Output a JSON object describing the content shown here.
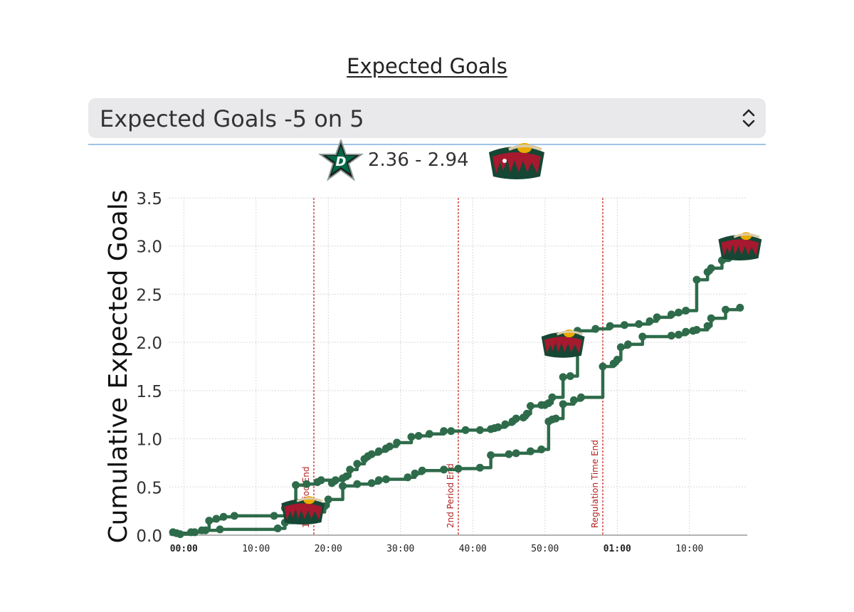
{
  "page": {
    "title": "Expected Goals"
  },
  "selector": {
    "selected": "Expected Goals -5 on 5"
  },
  "score": {
    "text": "2.36 - 2.94",
    "away_team_icon": "dallas-stars-logo",
    "home_team_icon": "minnesota-wild-logo"
  },
  "colors": {
    "series": "#2e6b4a",
    "marker_line": "#cc2b2b",
    "grid": "#d9d9d9",
    "wild_green": "#154734",
    "wild_red": "#a6192e",
    "wild_wheat": "#ddcba4",
    "stars_green": "#006847"
  },
  "chart_data": {
    "type": "line",
    "title": "",
    "xlabel": "",
    "ylabel": "Cumulative Expected Goals",
    "ylim": [
      0,
      3.5
    ],
    "yticks": [
      "0.0",
      "0.5",
      "1.0",
      "1.5",
      "2.0",
      "2.5",
      "3.0",
      "3.5"
    ],
    "xlim_minutes": [
      -2,
      78
    ],
    "xticks": [
      {
        "label": "00:00",
        "minute": 0,
        "bold": true
      },
      {
        "label": "10:00",
        "minute": 10,
        "bold": false
      },
      {
        "label": "20:00",
        "minute": 20,
        "bold": false
      },
      {
        "label": "30:00",
        "minute": 30,
        "bold": false
      },
      {
        "label": "40:00",
        "minute": 40,
        "bold": false
      },
      {
        "label": "50:00",
        "minute": 50,
        "bold": false
      },
      {
        "label": "01:00",
        "minute": 60,
        "bold": true
      },
      {
        "label": "10:00",
        "minute": 70,
        "bold": false
      }
    ],
    "period_markers": [
      {
        "label": "1st Period End",
        "minute": 18
      },
      {
        "label": "2nd Period End",
        "minute": 38
      },
      {
        "label": "Regulation Time End",
        "minute": 58
      }
    ],
    "grid": true,
    "legend": "none",
    "series": [
      {
        "team_icon": "minnesota-wild-logo",
        "x": [
          -1.5,
          -0.5,
          1,
          2.5,
          3.5,
          4.5,
          5.5,
          7,
          12.5,
          14,
          15.5,
          17,
          18.5,
          19,
          20.5,
          21,
          22,
          22.5,
          23,
          24,
          25,
          25.5,
          26,
          27,
          28,
          28.5,
          29.5,
          31.5,
          32.5,
          34,
          36,
          37,
          39,
          41,
          42.5,
          43,
          43.5,
          44.5,
          45.5,
          46,
          47,
          47.5,
          48,
          49.5,
          50,
          50.5,
          51,
          52.5,
          53.5,
          54.5,
          57,
          59,
          61,
          63,
          64.5,
          65.5,
          67.5,
          68.5,
          69.5,
          71,
          72.5,
          73,
          74.5,
          75.5,
          76.5
        ],
        "y": [
          0.03,
          0.01,
          0.03,
          0.05,
          0.15,
          0.17,
          0.19,
          0.2,
          0.2,
          0.28,
          0.52,
          0.53,
          0.55,
          0.57,
          0.54,
          0.57,
          0.59,
          0.61,
          0.68,
          0.74,
          0.79,
          0.82,
          0.84,
          0.87,
          0.9,
          0.92,
          0.96,
          1.02,
          1.03,
          1.05,
          1.08,
          1.08,
          1.09,
          1.09,
          1.1,
          1.11,
          1.12,
          1.15,
          1.18,
          1.21,
          1.22,
          1.26,
          1.34,
          1.35,
          1.35,
          1.37,
          1.43,
          1.64,
          1.65,
          2.12,
          2.14,
          2.17,
          2.18,
          2.19,
          2.22,
          2.26,
          2.29,
          2.31,
          2.33,
          2.65,
          2.73,
          2.77,
          2.85,
          2.88,
          2.94
        ]
      },
      {
        "team_icon": "dallas-stars-logo",
        "x": [
          -1,
          1.5,
          3,
          5,
          13,
          14,
          17,
          18,
          19.5,
          20,
          22,
          24,
          26,
          27,
          28,
          31,
          32,
          33,
          36,
          38,
          41,
          42.5,
          45,
          46,
          48,
          49.5,
          50.5,
          51,
          51.5,
          52.5,
          54,
          55,
          58,
          59.5,
          60,
          60.5,
          61.5,
          63.5,
          67.5,
          68.5,
          69.5,
          70.5,
          71,
          72.5,
          73,
          75,
          77
        ],
        "y": [
          0.02,
          0.03,
          0.05,
          0.06,
          0.07,
          0.13,
          0.16,
          0.24,
          0.3,
          0.37,
          0.51,
          0.53,
          0.54,
          0.57,
          0.58,
          0.6,
          0.64,
          0.67,
          0.68,
          0.69,
          0.7,
          0.83,
          0.84,
          0.85,
          0.87,
          0.89,
          1.18,
          1.2,
          1.21,
          1.36,
          1.4,
          1.43,
          1.75,
          1.78,
          1.82,
          1.95,
          1.98,
          2.06,
          2.07,
          2.08,
          2.11,
          2.12,
          2.13,
          2.17,
          2.25,
          2.34,
          2.36
        ]
      }
    ]
  }
}
